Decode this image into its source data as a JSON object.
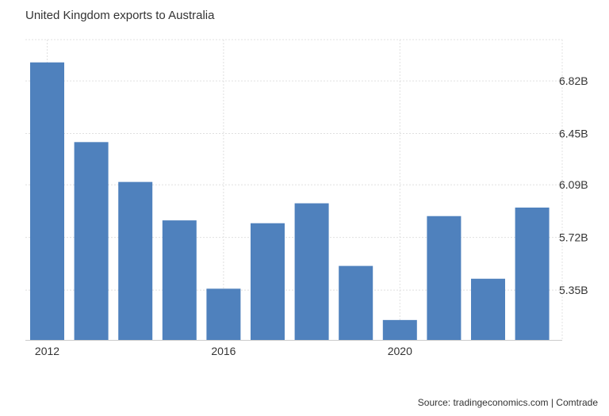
{
  "title": "United Kingdom exports to Australia",
  "source": "Source: tradingeconomics.com | Comtrade",
  "chart_data": {
    "type": "bar",
    "title": "United Kingdom exports to Australia",
    "x": [
      2012,
      2013,
      2014,
      2015,
      2016,
      2017,
      2018,
      2019,
      2020,
      2021,
      2022,
      2023
    ],
    "values": [
      6.95,
      6.39,
      6.11,
      5.84,
      5.36,
      5.82,
      5.96,
      5.52,
      5.14,
      5.87,
      5.43,
      5.93
    ],
    "unit": "B",
    "x_ticks": [
      "2012",
      "2016",
      "2020"
    ],
    "y_ticks": [
      "5.35B",
      "5.72B",
      "6.09B",
      "6.45B",
      "6.82B"
    ],
    "y_tick_values": [
      5.35,
      5.72,
      6.09,
      6.45,
      6.82
    ],
    "ylim": [
      5.0,
      7.11
    ],
    "y_axis_position": "right",
    "grid": true,
    "bar_color": "#4f81bd"
  }
}
